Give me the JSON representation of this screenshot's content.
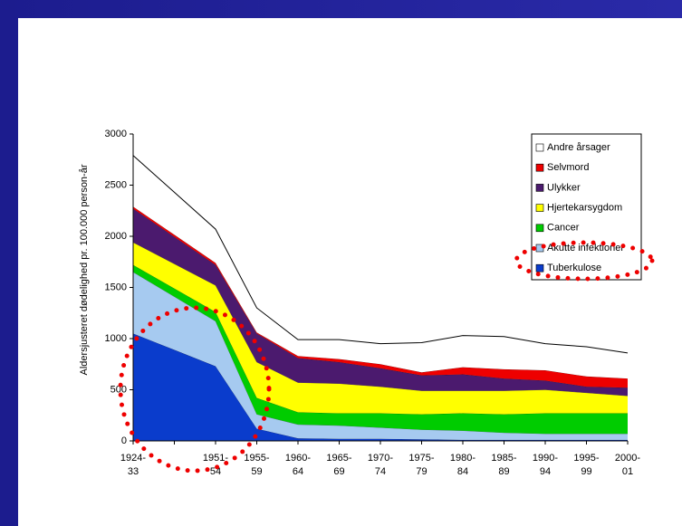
{
  "chart_data": {
    "type": "stacked_area",
    "ylabel": "Aldersjusteret dødelighed pr. 100.000 person-år",
    "categories": [
      "1924-33",
      null,
      "1951-54",
      "1955-59",
      "1960-64",
      "1965-69",
      "1970-74",
      "1975-79",
      "1980-84",
      "1985-89",
      "1990-94",
      "1995-99",
      "2000-01"
    ],
    "ylim": [
      0,
      3000
    ],
    "yticks": [
      0,
      500,
      1000,
      1500,
      2000,
      2500,
      3000
    ],
    "grid": false,
    "legend": "upper right",
    "series": [
      {
        "name": "Tuberkulose",
        "color": "#0a3ccc",
        "values": [
          1050,
          890,
          730,
          120,
          25,
          20,
          20,
          15,
          10,
          10,
          10,
          10,
          10
        ]
      },
      {
        "name": "Akutte infektioner",
        "color": "#a6caf0",
        "values": [
          600,
          520,
          440,
          140,
          135,
          130,
          110,
          95,
          90,
          70,
          60,
          60,
          60
        ]
      },
      {
        "name": "Cancer",
        "color": "#00cc00",
        "values": [
          70,
          80,
          90,
          160,
          120,
          120,
          140,
          150,
          170,
          180,
          200,
          200,
          200
        ]
      },
      {
        "name": "Hjertekarsygdom",
        "color": "#ffff00",
        "values": [
          220,
          240,
          260,
          350,
          290,
          290,
          260,
          230,
          220,
          230,
          230,
          200,
          170
        ]
      },
      {
        "name": "Ulykker",
        "color": "#4b1a6e",
        "values": [
          330,
          265,
          200,
          280,
          240,
          210,
          180,
          150,
          160,
          120,
          90,
          60,
          80
        ]
      },
      {
        "name": "Selvmord",
        "color": "#ee0000",
        "values": [
          20,
          20,
          20,
          10,
          20,
          30,
          40,
          30,
          70,
          90,
          100,
          100,
          90
        ]
      },
      {
        "name": "Andre årsager",
        "color": "#ffffff",
        "values": [
          500,
          415,
          330,
          240,
          160,
          190,
          200,
          290,
          310,
          320,
          260,
          290,
          250
        ]
      }
    ]
  }
}
